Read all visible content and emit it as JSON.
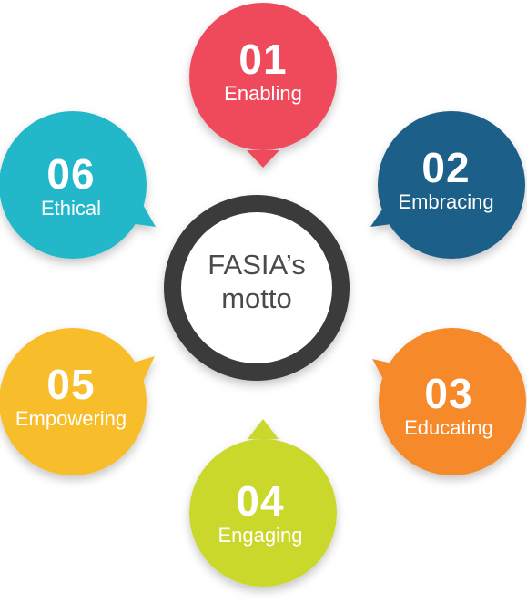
{
  "center": {
    "line1": "FASIA’s",
    "line2": "motto",
    "ring_color": "#3a3a3a"
  },
  "items": [
    {
      "number": "01",
      "label": "Enabling",
      "color": "#ef4a5c",
      "icon": "speech-bubble-icon"
    },
    {
      "number": "02",
      "label": "Embracing",
      "color": "#1a5f88",
      "icon": "speech-bubble-icon"
    },
    {
      "number": "03",
      "label": "Educating",
      "color": "#f6892c",
      "icon": "speech-bubble-icon"
    },
    {
      "number": "04",
      "label": "Engaging",
      "color": "#c9d82b",
      "icon": "speech-bubble-icon"
    },
    {
      "number": "05",
      "label": "Empowering",
      "color": "#f8bd2a",
      "icon": "speech-bubble-icon"
    },
    {
      "number": "06",
      "label": "Ethical",
      "color": "#22b8c9",
      "icon": "speech-bubble-icon"
    }
  ]
}
